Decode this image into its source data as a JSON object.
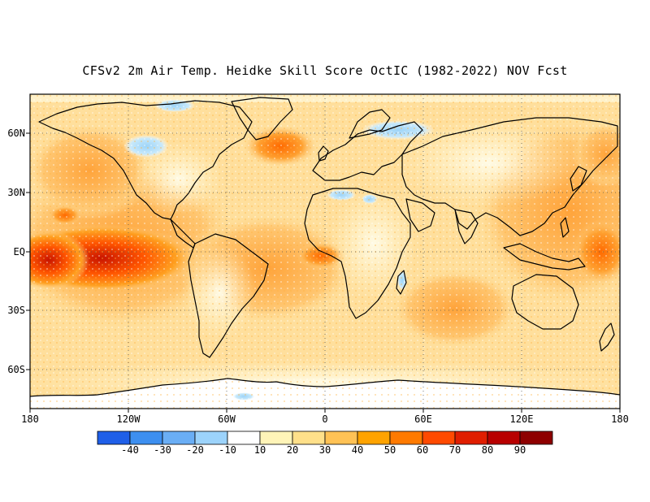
{
  "title": "CFSv2 2m Air Temp. Heidke Skill Score OctIC (1982-2022) NOV Fcst",
  "x_axis": {
    "ticks": [
      "180",
      "120W",
      "60W",
      "0",
      "60E",
      "120E",
      "180"
    ]
  },
  "y_axis": {
    "ticks": [
      "60N",
      "30N",
      "EQ",
      "30S",
      "60S"
    ]
  },
  "colorbar": {
    "labels": [
      "-40",
      "-30",
      "-20",
      "-10",
      "10",
      "20",
      "30",
      "40",
      "50",
      "60",
      "70",
      "80",
      "90"
    ],
    "colors": [
      "#1f5fe8",
      "#3d8ff0",
      "#6aaef5",
      "#9cd3fb",
      "#ffffff",
      "#fff4b8",
      "#ffe08a",
      "#ffc255",
      "#ffa300",
      "#ff7a00",
      "#ff4a00",
      "#e01e00",
      "#b80000",
      "#8e0000"
    ]
  },
  "map": {
    "projection": "cylindrical-equidistant",
    "lon_range": [
      -180,
      180
    ],
    "lat_range": [
      -80,
      80
    ],
    "land_color": "#ffffff",
    "gridlines": "dotted"
  }
}
